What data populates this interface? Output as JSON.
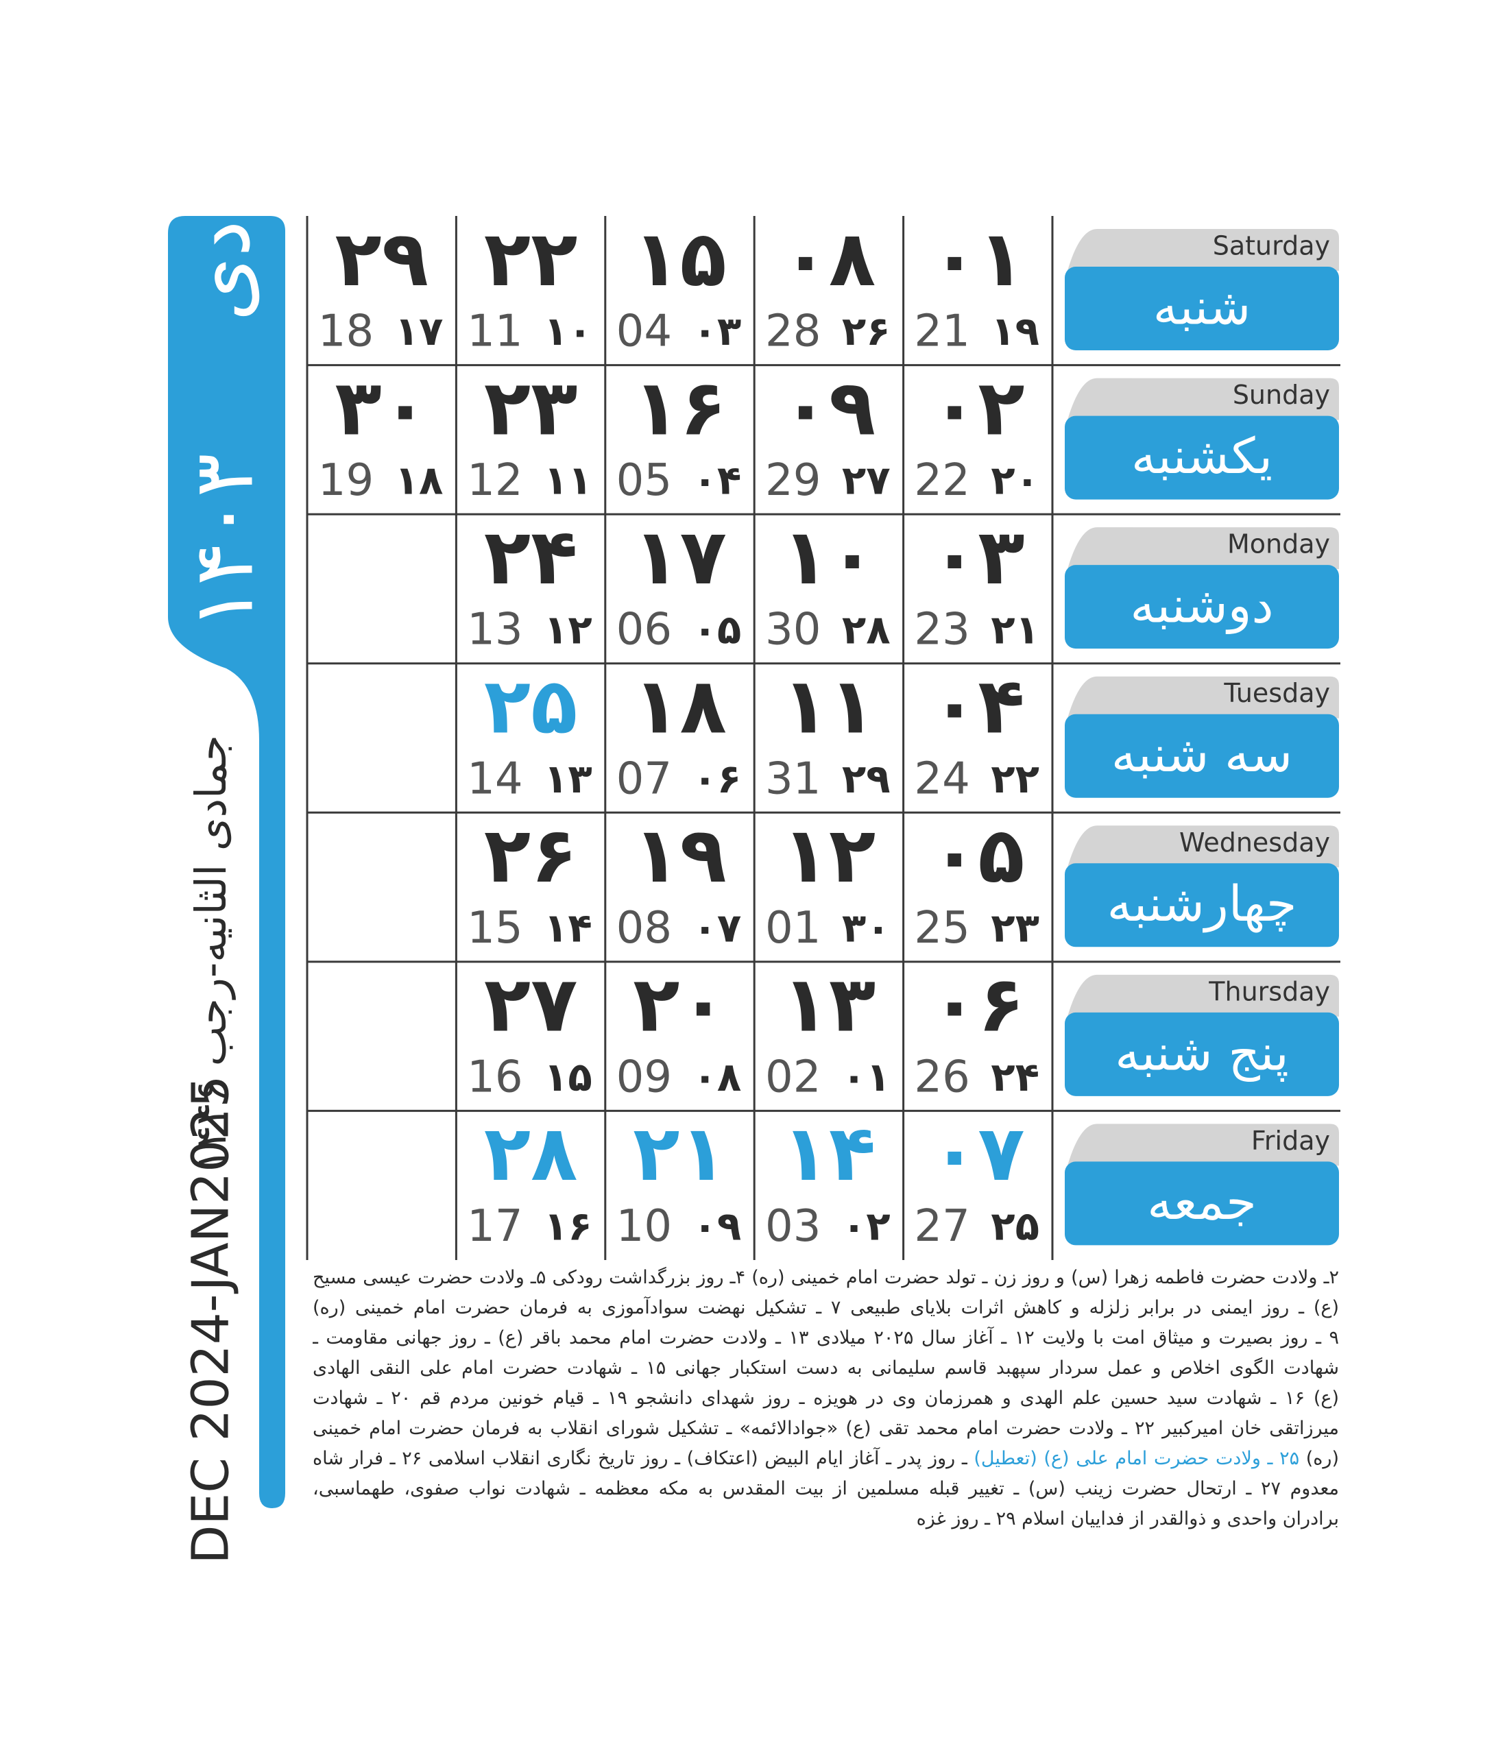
{
  "sidebar": {
    "month": "دی",
    "year": "۱۴۰۳",
    "hijri": "جمادی الثانیه-رجب ۱۴۴۶",
    "gregorian": "DEC 2024-JAN2025"
  },
  "colors": {
    "text": "#2b2b2b",
    "gregorian": "#555555",
    "holiday": "#2c9fd9",
    "label_bg": "#2c9fd9",
    "tab_bg": "#d4d4d4"
  },
  "days": [
    {
      "en": "Saturday",
      "fa": "شنبه",
      "cells": [
        {
          "day": "۰۱",
          "hijri": "۱۹",
          "gregorian": "21"
        },
        {
          "day": "۰۸",
          "hijri": "۲۶",
          "gregorian": "28"
        },
        {
          "day": "۱۵",
          "hijri": "۰۳",
          "gregorian": "04"
        },
        {
          "day": "۲۲",
          "hijri": "۱۰",
          "gregorian": "11"
        },
        {
          "day": "۲۹",
          "hijri": "۱۷",
          "gregorian": "18"
        }
      ]
    },
    {
      "en": "Sunday",
      "fa": "یکشنبه",
      "cells": [
        {
          "day": "۰۲",
          "hijri": "۲۰",
          "gregorian": "22"
        },
        {
          "day": "۰۹",
          "hijri": "۲۷",
          "gregorian": "29"
        },
        {
          "day": "۱۶",
          "hijri": "۰۴",
          "gregorian": "05"
        },
        {
          "day": "۲۳",
          "hijri": "۱۱",
          "gregorian": "12"
        },
        {
          "day": "۳۰",
          "hijri": "۱۸",
          "gregorian": "19"
        }
      ]
    },
    {
      "en": "Monday",
      "fa": "دوشنبه",
      "cells": [
        {
          "day": "۰۳",
          "hijri": "۲۱",
          "gregorian": "23"
        },
        {
          "day": "۱۰",
          "hijri": "۲۸",
          "gregorian": "30"
        },
        {
          "day": "۱۷",
          "hijri": "۰۵",
          "gregorian": "06"
        },
        {
          "day": "۲۴",
          "hijri": "۱۲",
          "gregorian": "13"
        },
        null
      ]
    },
    {
      "en": "Tuesday",
      "fa": "سه شنبه",
      "cells": [
        {
          "day": "۰۴",
          "hijri": "۲۲",
          "gregorian": "24"
        },
        {
          "day": "۱۱",
          "hijri": "۲۹",
          "gregorian": "31"
        },
        {
          "day": "۱۸",
          "hijri": "۰۶",
          "gregorian": "07"
        },
        {
          "day": "۲۵",
          "hijri": "۱۳",
          "gregorian": "14",
          "holiday": true
        },
        null
      ]
    },
    {
      "en": "Wednesday",
      "fa": "چهارشنبه",
      "cells": [
        {
          "day": "۰۵",
          "hijri": "۲۳",
          "gregorian": "25"
        },
        {
          "day": "۱۲",
          "hijri": "۳۰",
          "gregorian": "01"
        },
        {
          "day": "۱۹",
          "hijri": "۰۷",
          "gregorian": "08"
        },
        {
          "day": "۲۶",
          "hijri": "۱۴",
          "gregorian": "15"
        },
        null
      ]
    },
    {
      "en": "Thursday",
      "fa": "پنج شنبه",
      "cells": [
        {
          "day": "۰۶",
          "hijri": "۲۴",
          "gregorian": "26"
        },
        {
          "day": "۱۳",
          "hijri": "۰۱",
          "gregorian": "02"
        },
        {
          "day": "۲۰",
          "hijri": "۰۸",
          "gregorian": "09"
        },
        {
          "day": "۲۷",
          "hijri": "۱۵",
          "gregorian": "16"
        },
        null
      ]
    },
    {
      "en": "Friday",
      "fa": "جمعه",
      "cells": [
        {
          "day": "۰۷",
          "hijri": "۲۵",
          "gregorian": "27",
          "holiday": true
        },
        {
          "day": "۱۴",
          "hijri": "۰۲",
          "gregorian": "03",
          "holiday": true
        },
        {
          "day": "۲۱",
          "hijri": "۰۹",
          "gregorian": "10",
          "holiday": true
        },
        {
          "day": "۲۸",
          "hijri": "۱۶",
          "gregorian": "17",
          "holiday": true
        },
        null
      ]
    }
  ],
  "notes": {
    "lines": [
      [
        {
          "text": "۲ـ ولادت حضرت فاطمه زهرا (س) و روز زن ـ تولد حضرت امام خمینی (ره) ۴ـ روز بزرگداشت رودکی ۵ـ ولادت حضرت عیسی مسیح"
        }
      ],
      [
        {
          "text": "(ع) ـ روز ایمنی در برابر زلزله و کاهش اثرات بلایای طبیعی ۷ ـ تشکیل نهضت سوادآموزی به فرمان حضرت امام خمینی (ره)"
        }
      ],
      [
        {
          "text": "۹ ـ روز بصیرت و میثاق امت با ولایت ۱۲ ـ آغاز سال ۲۰۲۵ میلادی ۱۳ ـ ولادت حضرت امام محمد باقر (ع) ـ روز جهانی مقاومت ـ"
        }
      ],
      [
        {
          "text": "شهادت الگوی اخلاص و عمل سردار سپهبد قاسم سلیمانی به دست استکبار جهانی ۱۵ ـ شهادت حضرت امام علی النقی الهادی"
        }
      ],
      [
        {
          "text": "(ع) ۱۶ ـ شهادت سید حسین علم الهدی و همرزمان وی در هویزه ـ روز شهدای دانشجو ۱۹ ـ قیام خونین مردم قم ۲۰ ـ شهادت"
        }
      ],
      [
        {
          "text": "میرزاتقی خان امیرکبیر ۲۲ ـ ولادت حضرت امام محمد تقی (ع) «جوادالائمه» ـ تشکیل شورای انقلاب به فرمان حضرت امام خمینی"
        }
      ],
      [
        {
          "text": "(ره) "
        },
        {
          "text": "۲۵ ـ ولادت حضرت امام علی (ع) (تعطیل)",
          "highlight": true
        },
        {
          "text": " ـ روز پدر ـ آغاز ایام البیض (اعتکاف) ـ روز تاریخ نگاری انقلاب اسلامی ۲۶ ـ فرار شاه"
        }
      ],
      [
        {
          "text": "معدوم ۲۷ ـ ارتحال حضرت زینب (س) ـ تغییر قبله مسلمین از بیت المقدس به مکه معظمه ـ شهادت نواب صفوی، طهماسبی،"
        }
      ],
      [
        {
          "text": "برادران واحدی و ذوالقدر از فداییان اسلام ۲۹ ـ روز غزه"
        }
      ]
    ]
  }
}
